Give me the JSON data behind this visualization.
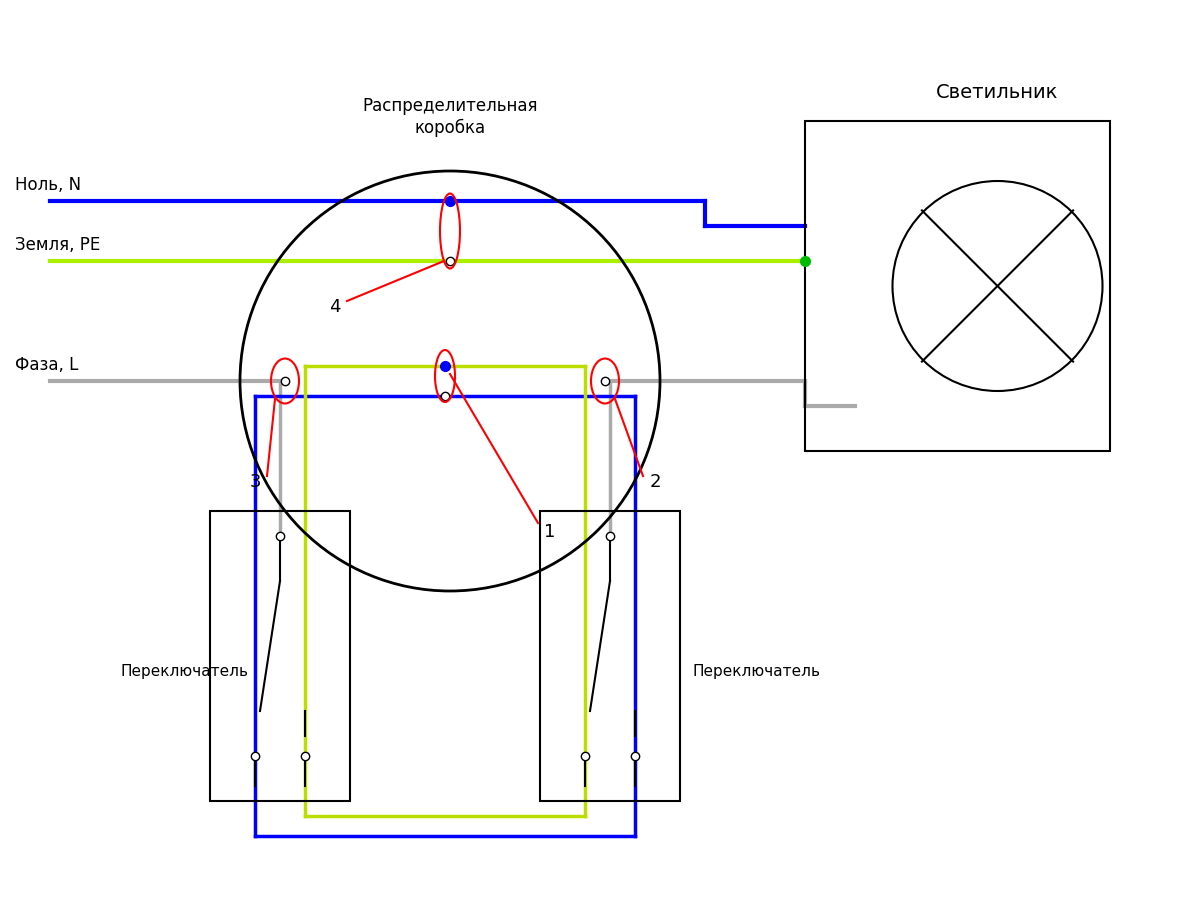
{
  "title": "Светильник",
  "label_nol": "Ноль, N",
  "label_zemlya": "Земля, PE",
  "label_faza": "Фаза, L",
  "label_box": "Распределительная\nкоробка",
  "label_switch": "Переключатель",
  "label_1": "1",
  "label_2": "2",
  "label_3": "3",
  "label_4": "4",
  "color_blue": "#0000FF",
  "color_green_wire": "#AAEE00",
  "color_gray": "#AAAAAA",
  "color_black": "#000000",
  "color_red": "#FF0000",
  "color_green_dot": "#00BB00",
  "color_yellow": "#BBDD00",
  "bg_color": "#FFFFFF"
}
